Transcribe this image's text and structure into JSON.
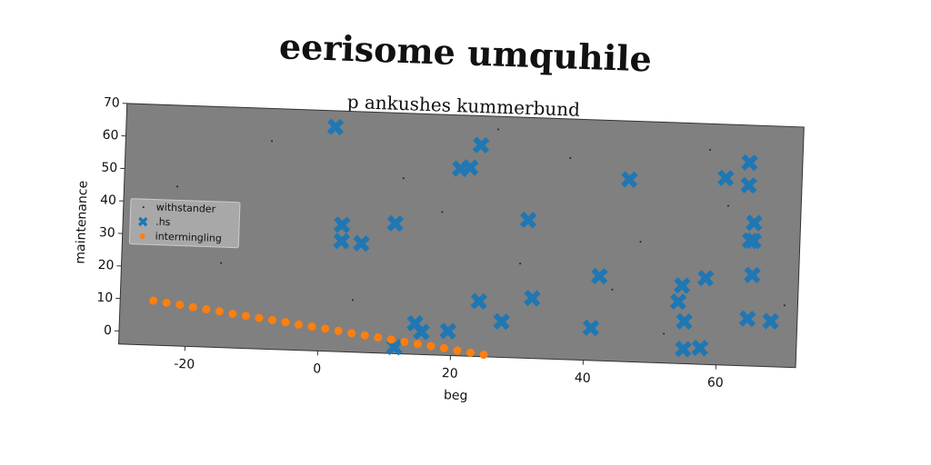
{
  "chart_data": {
    "type": "scatter",
    "title": "eerisome umquhile",
    "subtitle": "p ankushes kummerbund",
    "x_label": "beg",
    "y_label": "maintenance",
    "xlim": [
      -30,
      72
    ],
    "ylim": [
      -4,
      70
    ],
    "xticks": [
      -20,
      0,
      20,
      40,
      60
    ],
    "yticks": [
      0,
      10,
      20,
      30,
      40,
      50,
      60,
      70
    ],
    "legend": "center left",
    "background": "#808080",
    "series": [
      {
        "name": "withstander",
        "color": "#222222",
        "marker": "dot",
        "x": [
          -22,
          -8,
          5,
          18,
          30,
          37,
          48,
          52,
          61,
          70,
          -15,
          12,
          26,
          44,
          58
        ],
        "values": [
          45,
          60,
          12,
          40,
          25,
          58,
          33,
          5,
          45,
          15,
          22,
          50,
          66,
          18,
          62
        ]
      },
      {
        "name": ".hs",
        "color": "#1f77b4",
        "marker": "x",
        "x": [
          1.5,
          3,
          3,
          6,
          11,
          11.5,
          14.5,
          15.5,
          19.5,
          20.5,
          22,
          23.5,
          24,
          27.5,
          31,
          32,
          41,
          42,
          46,
          54,
          54.5,
          55,
          55,
          57.5,
          58,
          60.5,
          64,
          64,
          64.5,
          65,
          65,
          65,
          64.5,
          68
        ],
        "values": [
          65,
          35,
          30,
          29.5,
          36,
          -2,
          5.5,
          3,
          3.5,
          53.5,
          54,
          61,
          13,
          7,
          38.5,
          14.5,
          6,
          22,
          52,
          15,
          20,
          9,
          0.5,
          1,
          22.5,
          53.5,
          58.5,
          51.5,
          34.5,
          40,
          34.5,
          24,
          10.5,
          10
        ]
      },
      {
        "name": "intermingling",
        "color": "#ff7f0e",
        "marker": "dot",
        "x": [
          -25,
          -23,
          -21,
          -19,
          -17,
          -15,
          -13,
          -11,
          -9,
          -7,
          -5,
          -3,
          -1,
          1,
          3,
          5,
          7,
          9,
          11,
          13,
          15,
          17,
          19,
          21,
          23,
          25
        ],
        "values": [
          9.7,
          9.2,
          8.7,
          8.1,
          7.6,
          7.1,
          6.5,
          6.0,
          5.5,
          5.0,
          4.5,
          3.9,
          3.4,
          2.9,
          2.4,
          1.8,
          1.3,
          0.8,
          0.3,
          -0.3,
          -0.8,
          -1.3,
          -1.8,
          -2.4,
          -2.9,
          -3.4
        ]
      }
    ]
  }
}
